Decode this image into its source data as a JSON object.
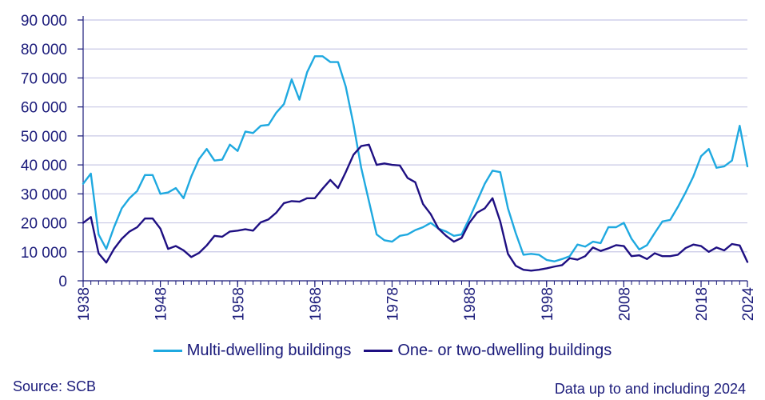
{
  "chart_data": {
    "type": "line",
    "title": "",
    "xlabel": "",
    "ylabel": "",
    "xlim": [
      1938,
      2024
    ],
    "ylim": [
      0,
      90000
    ],
    "grid": true,
    "legend_position": "bottom",
    "y_ticks": [
      0,
      10000,
      20000,
      30000,
      40000,
      50000,
      60000,
      70000,
      80000,
      90000
    ],
    "y_tick_labels": [
      "0",
      "10 000",
      "20 000",
      "30 000",
      "40 000",
      "50 000",
      "60 000",
      "70 000",
      "80 000",
      "90 000"
    ],
    "x_ticks": [
      1938,
      1948,
      1958,
      1968,
      1978,
      1988,
      1998,
      2008,
      2018,
      2024
    ],
    "x_tick_labels": [
      "1938",
      "1948",
      "1958",
      "1968",
      "1978",
      "1988",
      "1998",
      "2008",
      "2018",
      "2024"
    ],
    "x": [
      1938,
      1939,
      1940,
      1941,
      1942,
      1943,
      1944,
      1945,
      1946,
      1947,
      1948,
      1949,
      1950,
      1951,
      1952,
      1953,
      1954,
      1955,
      1956,
      1957,
      1958,
      1959,
      1960,
      1961,
      1962,
      1963,
      1964,
      1965,
      1966,
      1967,
      1968,
      1969,
      1970,
      1971,
      1972,
      1973,
      1974,
      1975,
      1976,
      1977,
      1978,
      1979,
      1980,
      1981,
      1982,
      1983,
      1984,
      1985,
      1986,
      1987,
      1988,
      1989,
      1990,
      1991,
      1992,
      1993,
      1994,
      1995,
      1996,
      1997,
      1998,
      1999,
      2000,
      2001,
      2002,
      2003,
      2004,
      2005,
      2006,
      2007,
      2008,
      2009,
      2010,
      2011,
      2012,
      2013,
      2014,
      2015,
      2016,
      2017,
      2018,
      2019,
      2020,
      2021,
      2022,
      2023,
      2024
    ],
    "series": [
      {
        "name": "Multi-dwelling buildings",
        "color": "#1fa9e0",
        "values": [
          33500,
          37000,
          16000,
          11000,
          18500,
          25000,
          28500,
          31000,
          36500,
          36500,
          30000,
          30500,
          32000,
          28500,
          36000,
          42000,
          45500,
          41500,
          41800,
          47000,
          44800,
          51500,
          51000,
          53500,
          53800,
          58000,
          61000,
          69500,
          62500,
          72000,
          77500,
          77500,
          75500,
          75500,
          67000,
          54000,
          39000,
          27500,
          16000,
          14000,
          13500,
          15500,
          16000,
          17500,
          18500,
          20000,
          18000,
          17000,
          15500,
          16000,
          21500,
          27500,
          33500,
          38000,
          37500,
          25000,
          16500,
          9000,
          9300,
          9000,
          7200,
          6700,
          7500,
          8500,
          12500,
          11800,
          13500,
          13000,
          18500,
          18500,
          20000,
          14500,
          10800,
          12300,
          16500,
          20500,
          21000,
          25500,
          30500,
          36000,
          43000,
          45500,
          39000,
          39500,
          41500,
          53500,
          39500
        ]
      },
      {
        "name": "One- or two-dwelling buildings",
        "color": "#1e0f82",
        "values": [
          20000,
          22000,
          9500,
          6300,
          11000,
          14500,
          17000,
          18500,
          21500,
          21500,
          18000,
          11000,
          12000,
          10500,
          8200,
          9600,
          12200,
          15500,
          15200,
          17000,
          17300,
          17800,
          17300,
          20200,
          21200,
          23500,
          26800,
          27500,
          27300,
          28500,
          28500,
          31800,
          34800,
          32000,
          37500,
          43500,
          46500,
          47000,
          40000,
          40500,
          40000,
          39800,
          35500,
          34000,
          26500,
          23000,
          18000,
          15500,
          13500,
          14800,
          20000,
          23500,
          25000,
          28500,
          20500,
          9300,
          5200,
          3800,
          3500,
          3800,
          4300,
          4900,
          5400,
          7800,
          7300,
          8500,
          11500,
          10300,
          11200,
          12300,
          12000,
          8500,
          8800,
          7500,
          9500,
          8500,
          8500,
          9000,
          11300,
          12500,
          12000,
          10000,
          11500,
          10500,
          12700,
          12200,
          6500
        ]
      }
    ]
  },
  "footer": {
    "source": "Source: SCB",
    "note": "Data up to and including 2024"
  }
}
